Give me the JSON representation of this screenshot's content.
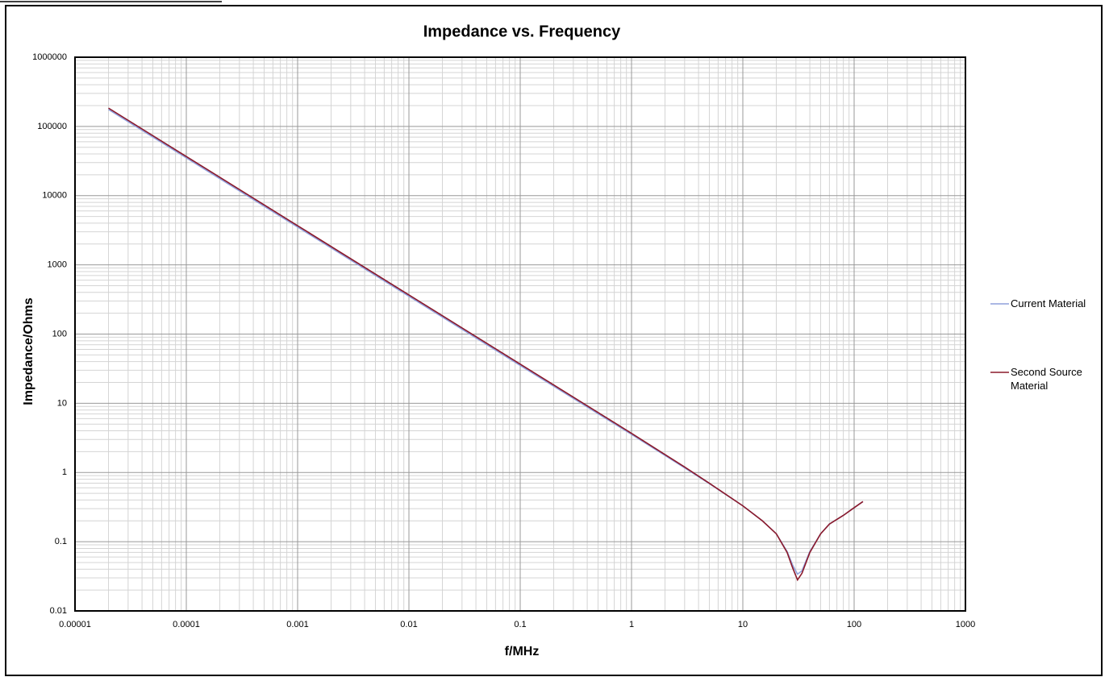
{
  "chart_data": {
    "type": "line",
    "title": "Impedance vs. Frequency",
    "x_label": "f/MHz",
    "y_label": "Impedance/Ohms",
    "x": [
      2e-05,
      0.0001,
      0.001,
      0.01,
      0.1,
      1,
      3,
      5,
      10,
      15,
      20,
      25,
      28,
      31,
      34,
      40,
      50,
      60,
      70,
      80,
      100,
      120
    ],
    "series": [
      {
        "name": "Current Material",
        "color": "#8f9fdc",
        "values": [
          176000,
          35200,
          3520,
          352,
          35.2,
          3.55,
          1.17,
          0.69,
          0.33,
          0.2,
          0.13,
          0.072,
          0.046,
          0.034,
          0.038,
          0.072,
          0.13,
          0.18,
          0.21,
          0.24,
          0.31,
          0.38
        ]
      },
      {
        "name": "Second Source Material",
        "color": "#8b1a2b",
        "values": [
          184000,
          36800,
          3680,
          368,
          36.8,
          3.68,
          1.2,
          0.7,
          0.33,
          0.2,
          0.13,
          0.07,
          0.042,
          0.028,
          0.035,
          0.07,
          0.13,
          0.18,
          0.21,
          0.24,
          0.31,
          0.38
        ]
      }
    ],
    "x_log": true,
    "y_log": true,
    "xlim": [
      1e-05,
      1000
    ],
    "xticks": [
      1e-05,
      0.0001,
      0.001,
      0.01,
      0.1,
      1,
      10,
      100,
      1000
    ],
    "ylim": [
      0.01,
      1000000
    ],
    "yticks": [
      0.01,
      0.1,
      1,
      10,
      100,
      1000,
      10000,
      100000,
      1000000
    ],
    "grid": true,
    "minor_grid": true,
    "legend": "right"
  }
}
